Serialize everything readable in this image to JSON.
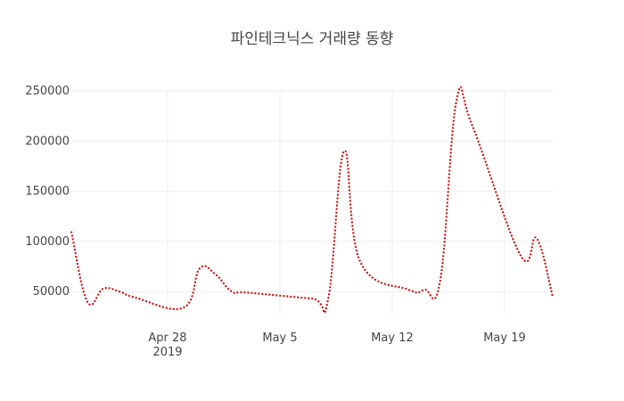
{
  "chart_data": {
    "type": "line",
    "title": "파인테크닉스 거래량 동향",
    "xlabel": "",
    "ylabel": "",
    "line_color": "#cc0000",
    "line_style": "dotted",
    "grid": true,
    "x_tick_labels": [
      "Apr 28",
      "May 5",
      "May 12",
      "May 19"
    ],
    "x_tick_dates": [
      "2019-04-28",
      "2019-05-05",
      "2019-05-12",
      "2019-05-19"
    ],
    "x_year_label": "2019",
    "y_tick_labels": [
      "50000",
      "100000",
      "150000",
      "200000",
      "250000"
    ],
    "y_ticks": [
      50000,
      100000,
      150000,
      200000,
      250000
    ],
    "ylim": [
      28000,
      250000
    ],
    "xlim": [
      "2019-04-22",
      "2019-05-22"
    ],
    "series": [
      {
        "x": [
          "2019-04-22",
          "2019-04-23",
          "2019-04-24",
          "2019-04-25",
          "2019-04-26",
          "2019-04-29",
          "2019-04-30",
          "2019-05-01",
          "2019-05-02",
          "2019-05-03",
          "2019-05-07",
          "2019-05-08",
          "2019-05-09",
          "2019-05-10",
          "2019-05-13",
          "2019-05-14",
          "2019-05-15",
          "2019-05-16",
          "2019-05-17",
          "2019-05-20",
          "2019-05-21",
          "2019-05-22"
        ],
        "y": [
          110000,
          40000,
          53000,
          50000,
          44000,
          34000,
          73000,
          67000,
          50000,
          49000,
          43000,
          42000,
          190000,
          80000,
          52000,
          52000,
          62000,
          240000,
          215000,
          86000,
          103000,
          45000
        ]
      }
    ]
  }
}
